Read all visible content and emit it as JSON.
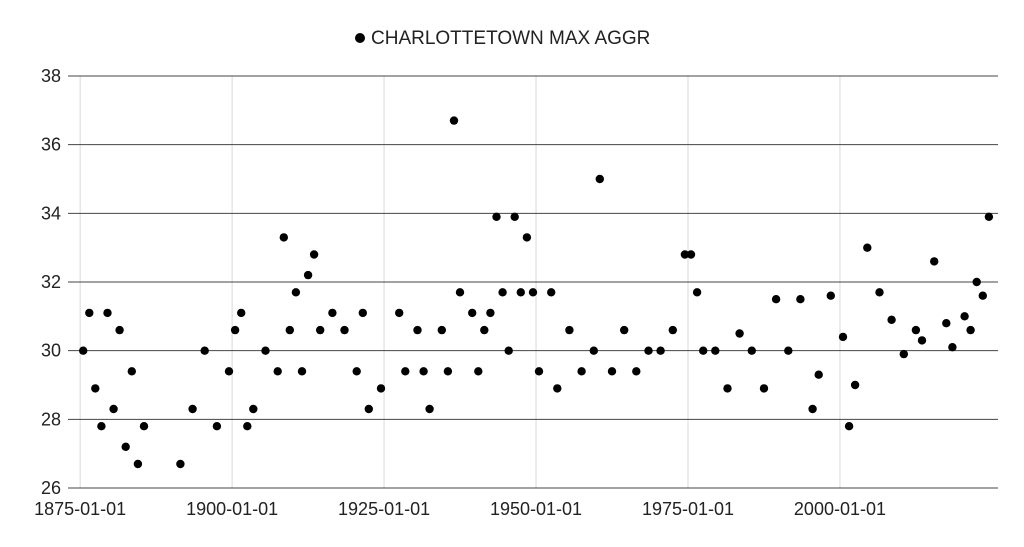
{
  "chart_data": {
    "type": "scatter",
    "title": "",
    "xlabel": "",
    "ylabel": "",
    "legend_position": "top-center",
    "xlim": [
      "1873-01-01",
      "2025-12-31"
    ],
    "ylim": [
      26,
      38
    ],
    "x_ticks": [
      "1875-01-01",
      "1900-01-01",
      "1925-01-01",
      "1950-01-01",
      "1975-01-01",
      "2000-01-01"
    ],
    "y_ticks": [
      26,
      28,
      30,
      32,
      34,
      36,
      38
    ],
    "grid": {
      "horizontal": true,
      "vertical": true
    },
    "colors": {
      "marker": "#000000",
      "major_grid": "#444444",
      "minor_grid": "#d9d9d9"
    },
    "series": [
      {
        "name": "CHARLOTTETOWN MAX AGGR",
        "x": [
          "1875-07-01",
          "1876-07-01",
          "1877-07-01",
          "1878-07-01",
          "1879-07-01",
          "1880-07-01",
          "1881-07-01",
          "1882-07-01",
          "1883-07-01",
          "1884-07-01",
          "1885-07-01",
          "1891-07-01",
          "1893-07-01",
          "1895-07-01",
          "1897-07-01",
          "1899-07-01",
          "1900-07-01",
          "1901-07-01",
          "1902-07-01",
          "1903-07-01",
          "1905-07-01",
          "1907-07-01",
          "1908-07-01",
          "1909-07-01",
          "1910-07-01",
          "1911-07-01",
          "1912-07-01",
          "1913-07-01",
          "1914-07-01",
          "1916-07-01",
          "1918-07-01",
          "1920-07-01",
          "1921-07-01",
          "1922-07-01",
          "1924-07-01",
          "1927-07-01",
          "1928-07-01",
          "1930-07-01",
          "1931-07-01",
          "1932-07-01",
          "1934-07-01",
          "1935-07-01",
          "1936-07-01",
          "1937-07-01",
          "1939-07-01",
          "1940-07-01",
          "1941-07-01",
          "1942-07-01",
          "1943-07-01",
          "1944-07-01",
          "1945-07-01",
          "1946-07-01",
          "1947-07-01",
          "1948-07-01",
          "1949-07-01",
          "1950-07-01",
          "1952-07-01",
          "1953-07-01",
          "1955-07-01",
          "1957-07-01",
          "1959-07-01",
          "1960-07-01",
          "1962-07-01",
          "1964-07-01",
          "1966-07-01",
          "1968-07-01",
          "1970-07-01",
          "1972-07-01",
          "1974-07-01",
          "1975-07-01",
          "1976-07-01",
          "1977-07-01",
          "1979-07-01",
          "1981-07-01",
          "1983-07-01",
          "1985-07-01",
          "1987-07-01",
          "1989-07-01",
          "1991-07-01",
          "1993-07-01",
          "1995-07-01",
          "1996-07-01",
          "1998-07-01",
          "2000-07-01",
          "2001-07-01",
          "2002-07-01",
          "2004-07-01",
          "2006-07-01",
          "2008-07-01",
          "2010-07-01",
          "2012-07-01",
          "2013-07-01",
          "2015-07-01",
          "2017-07-01",
          "2018-07-01",
          "2020-07-01",
          "2021-07-01",
          "2022-07-01",
          "2023-07-01",
          "2024-07-01"
        ],
        "y": [
          30.0,
          31.1,
          28.9,
          27.8,
          31.1,
          28.3,
          30.6,
          27.2,
          29.4,
          26.7,
          27.8,
          26.7,
          28.3,
          30.0,
          27.8,
          29.4,
          30.6,
          31.1,
          27.8,
          28.3,
          30.0,
          29.4,
          33.3,
          30.6,
          31.7,
          29.4,
          32.2,
          32.8,
          30.6,
          31.1,
          30.6,
          29.4,
          31.1,
          28.3,
          28.9,
          31.1,
          29.4,
          30.6,
          29.4,
          28.3,
          30.6,
          29.4,
          36.7,
          31.7,
          31.1,
          29.4,
          30.6,
          31.1,
          33.9,
          31.7,
          30.0,
          33.9,
          31.7,
          33.3,
          31.7,
          29.4,
          31.7,
          28.9,
          30.6,
          29.4,
          30.0,
          35.0,
          29.4,
          30.6,
          29.4,
          30.0,
          30.0,
          30.6,
          32.8,
          32.8,
          31.7,
          30.0,
          30.0,
          28.9,
          30.5,
          30.0,
          28.9,
          31.5,
          30.0,
          31.5,
          28.3,
          29.3,
          31.6,
          30.4,
          27.8,
          29.0,
          33.0,
          31.7,
          30.9,
          29.9,
          30.6,
          30.3,
          32.6,
          30.8,
          30.1,
          31.0,
          30.6,
          32.0,
          31.6,
          33.9
        ]
      }
    ]
  }
}
